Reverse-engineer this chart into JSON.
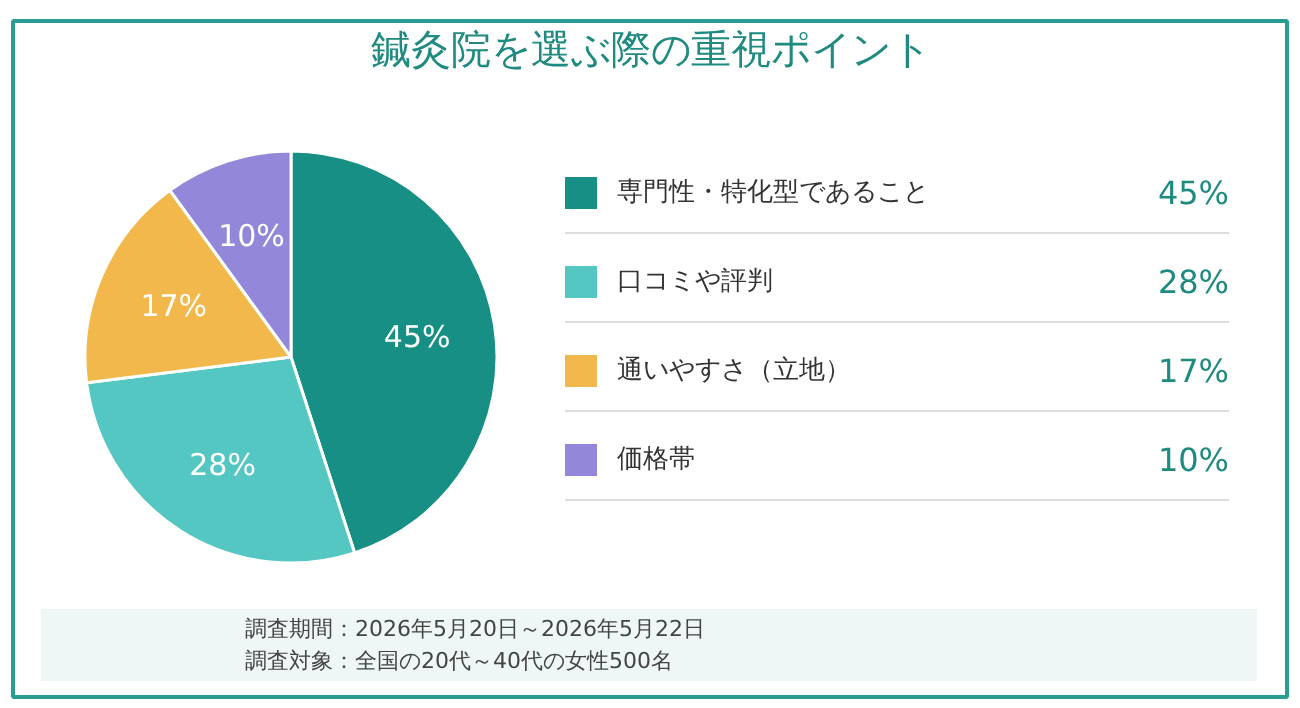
{
  "chart_data": {
    "type": "pie",
    "title": "鍼灸院を選ぶ際の重視ポイント",
    "categories": [
      "専門性・特化型であること",
      "口コミや評判",
      "通いやすさ（立地）",
      "価格帯"
    ],
    "values": [
      45,
      28,
      17,
      10
    ],
    "colors": [
      "#178f85",
      "#55c7c2",
      "#f2b84b",
      "#9287d9"
    ],
    "value_labels": [
      "45%",
      "28%",
      "17%",
      "10%"
    ],
    "legend": "right",
    "annotations": [
      "調査期間：2026年5月20日～2026年5月22日",
      "調査対象：全国の20代～40代の女性500名"
    ]
  }
}
